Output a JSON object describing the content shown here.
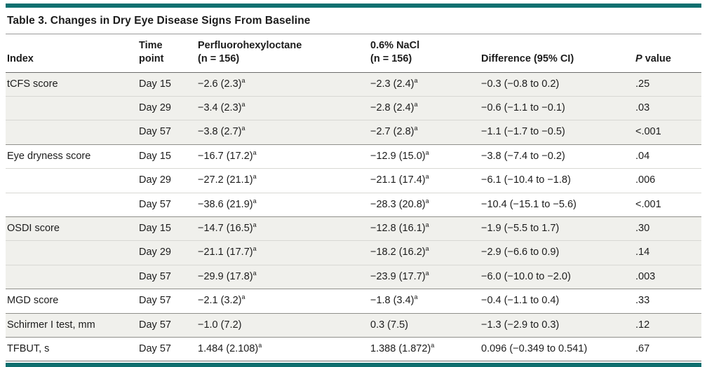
{
  "colors": {
    "accent_teal": "#0F6F6F",
    "row_shade": "#F0F0EC"
  },
  "table": {
    "title": "Table 3. Changes in Dry Eye Disease Signs From Baseline",
    "header": {
      "index": "Index",
      "time_line1": "Time",
      "time_line2": "point",
      "pfho_line1": "Perfluorohexyloctane",
      "pfho_line2": "(n = 156)",
      "nacl_line1": "0.6% NaCl",
      "nacl_line2": "(n = 156)",
      "difference": "Difference (95% CI)",
      "p_italic": "P",
      "p_rest": "value"
    },
    "footnote_marker": "a",
    "rows": [
      {
        "index": "tCFS score",
        "time": "Day 15",
        "pfho": "−2.6 (2.3)",
        "pfho_sup": "a",
        "nacl": "−2.3 (2.4)",
        "nacl_sup": "a",
        "diff": "−0.3 (−0.8 to 0.2)",
        "p": ".25"
      },
      {
        "index": "",
        "time": "Day 29",
        "pfho": "−3.4 (2.3)",
        "pfho_sup": "a",
        "nacl": "−2.8 (2.4)",
        "nacl_sup": "a",
        "diff": "−0.6 (−1.1 to −0.1)",
        "p": ".03"
      },
      {
        "index": "",
        "time": "Day 57",
        "pfho": "−3.8 (2.7)",
        "pfho_sup": "a",
        "nacl": "−2.7 (2.8)",
        "nacl_sup": "a",
        "diff": "−1.1 (−1.7 to −0.5)",
        "p": "<.001"
      },
      {
        "index": "Eye dryness score",
        "time": "Day 15",
        "pfho": "−16.7 (17.2)",
        "pfho_sup": "a",
        "nacl": "−12.9 (15.0)",
        "nacl_sup": "a",
        "diff": "−3.8 (−7.4 to −0.2)",
        "p": ".04"
      },
      {
        "index": "",
        "time": "Day 29",
        "pfho": "−27.2 (21.1)",
        "pfho_sup": "a",
        "nacl": "−21.1 (17.4)",
        "nacl_sup": "a",
        "diff": "−6.1 (−10.4 to −1.8)",
        "p": ".006"
      },
      {
        "index": "",
        "time": "Day 57",
        "pfho": "−38.6 (21.9)",
        "pfho_sup": "a",
        "nacl": "−28.3 (20.8)",
        "nacl_sup": "a",
        "diff": "−10.4 (−15.1 to −5.6)",
        "p": "<.001"
      },
      {
        "index": "OSDI score",
        "time": "Day 15",
        "pfho": "−14.7 (16.5)",
        "pfho_sup": "a",
        "nacl": "−12.8 (16.1)",
        "nacl_sup": "a",
        "diff": "−1.9 (−5.5 to 1.7)",
        "p": ".30"
      },
      {
        "index": "",
        "time": "Day 29",
        "pfho": "−21.1 (17.7)",
        "pfho_sup": "a",
        "nacl": "−18.2 (16.2)",
        "nacl_sup": "a",
        "diff": "−2.9 (−6.6 to 0.9)",
        "p": ".14"
      },
      {
        "index": "",
        "time": "Day 57",
        "pfho": "−29.9 (17.8)",
        "pfho_sup": "a",
        "nacl": "−23.9 (17.7)",
        "nacl_sup": "a",
        "diff": "−6.0 (−10.0 to −2.0)",
        "p": ".003"
      },
      {
        "index": "MGD score",
        "time": "Day 57",
        "pfho": "−2.1 (3.2)",
        "pfho_sup": "a",
        "nacl": "−1.8 (3.4)",
        "nacl_sup": "a",
        "diff": "−0.4 (−1.1 to 0.4)",
        "p": ".33"
      },
      {
        "index": "Schirmer I test, mm",
        "time": "Day 57",
        "pfho": "−1.0 (7.2)",
        "pfho_sup": "",
        "nacl": "0.3 (7.5)",
        "nacl_sup": "",
        "diff": "−1.3 (−2.9 to 0.3)",
        "p": ".12"
      },
      {
        "index": "TFBUT, s",
        "time": "Day 57",
        "pfho": "1.484 (2.108)",
        "pfho_sup": "a",
        "nacl": "1.388 (1.872)",
        "nacl_sup": "a",
        "diff": "0.096 (−0.349 to 0.541)",
        "p": ".67"
      }
    ]
  }
}
